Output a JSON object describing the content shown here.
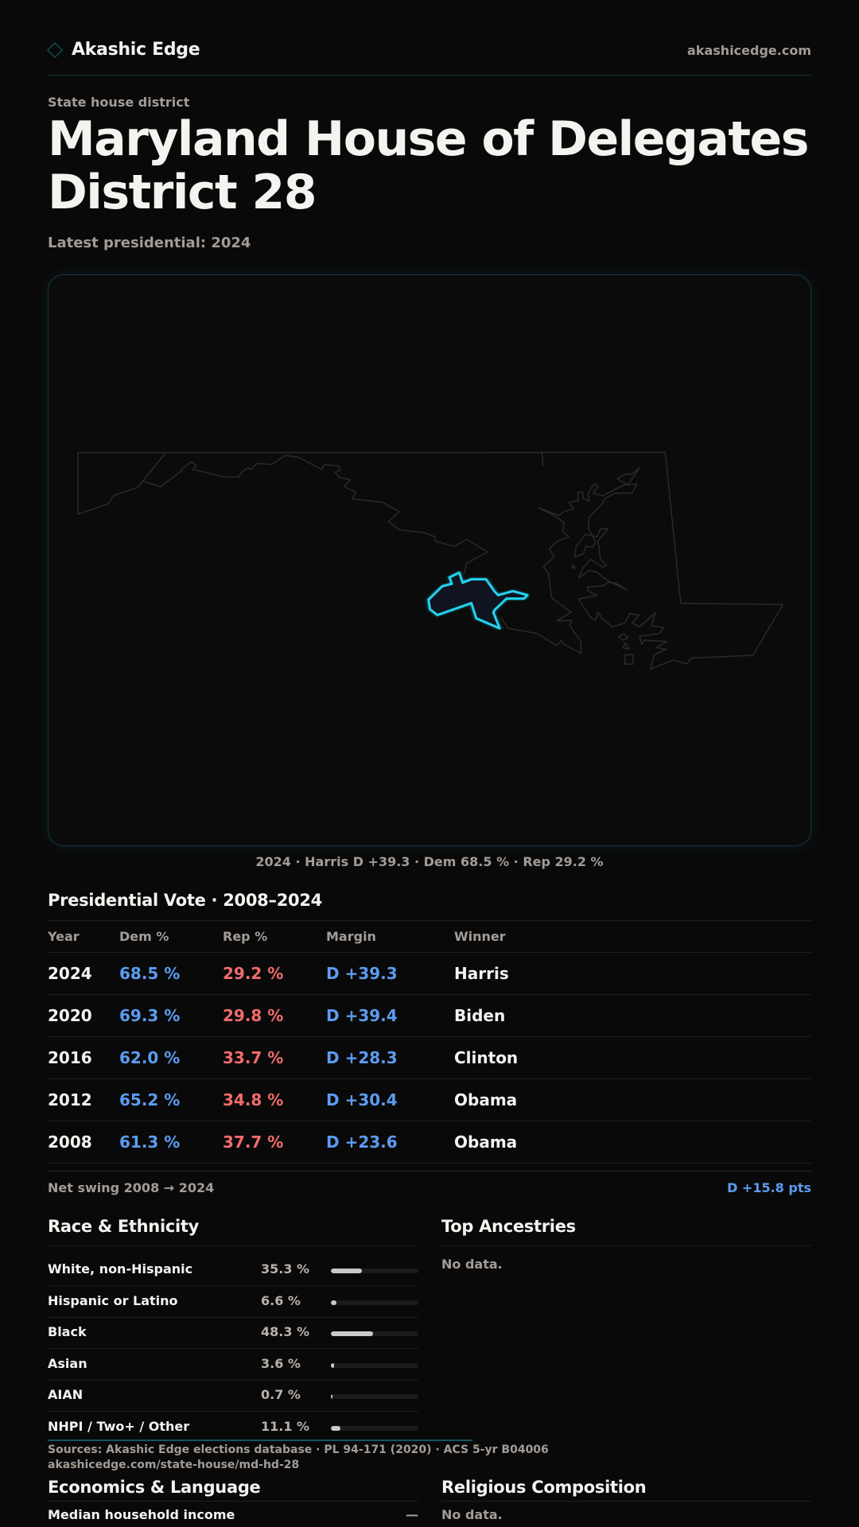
{
  "header": {
    "brand": "Akashic Edge",
    "site": "akashicedge.com",
    "logo_icon": "diamond-icon"
  },
  "page": {
    "eyebrow": "State house district",
    "title": "Maryland House of Delegates District 28",
    "latest": "Latest presidential: 2024"
  },
  "map": {
    "caption": "2024 · Harris D +39.3 · Dem 68.5 % · Rep 29.2 %",
    "highlight_color": "#22d3ee"
  },
  "presidential": {
    "heading": "Presidential Vote · 2008–2024",
    "columns": [
      "Year",
      "Dem %",
      "Rep %",
      "Margin",
      "Winner"
    ],
    "rows": [
      {
        "year": "2024",
        "dem": "68.5 %",
        "rep": "29.2 %",
        "margin": "D +39.3",
        "winner": "Harris"
      },
      {
        "year": "2020",
        "dem": "69.3 %",
        "rep": "29.8 %",
        "margin": "D +39.4",
        "winner": "Biden"
      },
      {
        "year": "2016",
        "dem": "62.0 %",
        "rep": "33.7 %",
        "margin": "D +28.3",
        "winner": "Clinton"
      },
      {
        "year": "2012",
        "dem": "65.2 %",
        "rep": "34.8 %",
        "margin": "D +30.4",
        "winner": "Obama"
      },
      {
        "year": "2008",
        "dem": "61.3 %",
        "rep": "37.7 %",
        "margin": "D +23.6",
        "winner": "Obama"
      }
    ],
    "net_swing_label": "Net swing 2008 → 2024",
    "net_swing_value": "D +15.8 pts"
  },
  "race": {
    "heading": "Race & Ethnicity",
    "rows": [
      {
        "label": "White, non-Hispanic",
        "value": "35.3 %",
        "pct": 35.3
      },
      {
        "label": "Hispanic or Latino",
        "value": "6.6 %",
        "pct": 6.6
      },
      {
        "label": "Black",
        "value": "48.3 %",
        "pct": 48.3
      },
      {
        "label": "Asian",
        "value": "3.6 %",
        "pct": 3.6
      },
      {
        "label": "AIAN",
        "value": "0.7 %",
        "pct": 0.7
      },
      {
        "label": "NHPI / Two+ / Other",
        "value": "11.1 %",
        "pct": 11.1
      }
    ]
  },
  "ancestries": {
    "heading": "Top Ancestries",
    "empty": "No data."
  },
  "footer": {
    "sources": "Sources: Akashic Edge elections database · PL 94-171 (2020) · ACS 5-yr B04006",
    "url": "akashicedge.com/state-house/md-hd-28"
  },
  "economics": {
    "heading": "Economics & Language",
    "rows": [
      {
        "label": "Median household income",
        "value": "—"
      }
    ]
  },
  "religion": {
    "heading": "Religious Composition",
    "empty": "No data."
  }
}
